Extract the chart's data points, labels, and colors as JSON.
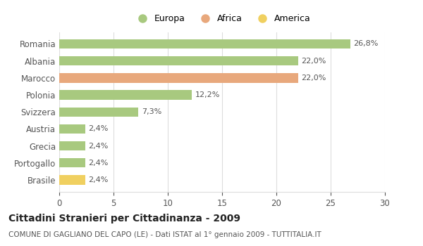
{
  "categories": [
    "Romania",
    "Albania",
    "Marocco",
    "Polonia",
    "Svizzera",
    "Austria",
    "Grecia",
    "Portogallo",
    "Brasile"
  ],
  "values": [
    26.8,
    22.0,
    22.0,
    12.2,
    7.3,
    2.4,
    2.4,
    2.4,
    2.4
  ],
  "labels": [
    "26,8%",
    "22,0%",
    "22,0%",
    "12,2%",
    "7,3%",
    "2,4%",
    "2,4%",
    "2,4%",
    "2,4%"
  ],
  "colors": [
    "#a8c97f",
    "#a8c97f",
    "#e8a87c",
    "#a8c97f",
    "#a8c97f",
    "#a8c97f",
    "#a8c97f",
    "#a8c97f",
    "#f0d060"
  ],
  "legend_labels": [
    "Europa",
    "Africa",
    "America"
  ],
  "legend_colors": [
    "#a8c97f",
    "#e8a87c",
    "#f0d060"
  ],
  "xlim": [
    0,
    30
  ],
  "xticks": [
    0,
    5,
    10,
    15,
    20,
    25,
    30
  ],
  "title": "Cittadini Stranieri per Cittadinanza - 2009",
  "subtitle": "COMUNE DI GAGLIANO DEL CAPO (LE) - Dati ISTAT al 1° gennaio 2009 - TUTTITALIA.IT",
  "title_fontsize": 10,
  "subtitle_fontsize": 7.5,
  "bar_height": 0.55,
  "background_color": "#ffffff",
  "grid_color": "#dddddd",
  "label_fontsize": 8,
  "ytick_fontsize": 8.5,
  "xtick_fontsize": 8.5
}
